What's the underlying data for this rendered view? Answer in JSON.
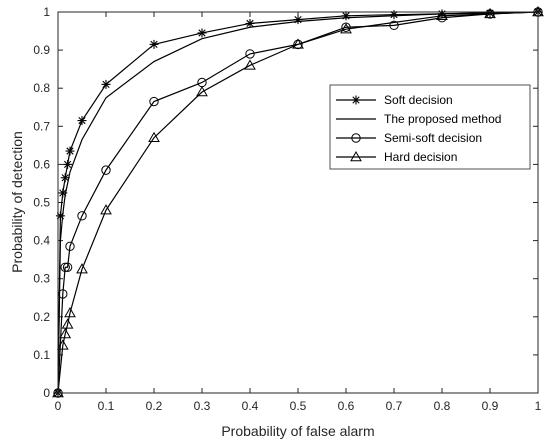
{
  "chart_data": {
    "type": "line",
    "title": "",
    "xlabel": "Probability of false alarm",
    "ylabel": "Probability of detection",
    "xlim": [
      0,
      1
    ],
    "ylim": [
      0,
      1
    ],
    "xticks": [
      "0",
      "0.1",
      "0.2",
      "0.3",
      "0.4",
      "0.5",
      "0.6",
      "0.7",
      "0.8",
      "0.9",
      "1"
    ],
    "yticks": [
      "0",
      "0.1",
      "0.2",
      "0.3",
      "0.4",
      "0.5",
      "0.6",
      "0.7",
      "0.8",
      "0.9",
      "1"
    ],
    "grid": false,
    "legend_position": "right",
    "series": [
      {
        "name": "Soft decision",
        "marker": "asterisk",
        "x": [
          0,
          0.005,
          0.01,
          0.015,
          0.02,
          0.025,
          0.05,
          0.1,
          0.2,
          0.3,
          0.4,
          0.5,
          0.6,
          0.7,
          0.8,
          0.9,
          1
        ],
        "y": [
          0,
          0.465,
          0.525,
          0.565,
          0.6,
          0.635,
          0.715,
          0.81,
          0.915,
          0.945,
          0.97,
          0.98,
          0.99,
          0.993,
          0.995,
          0.997,
          1
        ]
      },
      {
        "name": "The proposed method",
        "marker": "none",
        "x": [
          0,
          0.005,
          0.01,
          0.015,
          0.02,
          0.025,
          0.05,
          0.1,
          0.2,
          0.3,
          0.4,
          0.5,
          0.6,
          0.7,
          0.8,
          0.9,
          1
        ],
        "y": [
          0,
          0.4,
          0.47,
          0.52,
          0.55,
          0.58,
          0.665,
          0.775,
          0.87,
          0.93,
          0.96,
          0.975,
          0.985,
          0.99,
          0.995,
          0.998,
          1
        ]
      },
      {
        "name": "Semi-soft decision",
        "marker": "circle",
        "x": [
          0,
          0.01,
          0.015,
          0.02,
          0.025,
          0.05,
          0.1,
          0.2,
          0.3,
          0.4,
          0.5,
          0.6,
          0.7,
          0.8,
          0.9,
          1
        ],
        "y": [
          0,
          0.26,
          0.33,
          0.33,
          0.385,
          0.465,
          0.585,
          0.765,
          0.815,
          0.89,
          0.915,
          0.96,
          0.965,
          0.985,
          0.995,
          1
        ]
      },
      {
        "name": "Hard decision",
        "marker": "triangle",
        "x": [
          0,
          0.01,
          0.015,
          0.02,
          0.025,
          0.05,
          0.1,
          0.2,
          0.3,
          0.4,
          0.5,
          0.6,
          0.8,
          0.9,
          1
        ],
        "y": [
          0,
          0.125,
          0.155,
          0.18,
          0.21,
          0.325,
          0.48,
          0.67,
          0.79,
          0.86,
          0.915,
          0.955,
          0.99,
          0.995,
          1
        ]
      }
    ]
  }
}
